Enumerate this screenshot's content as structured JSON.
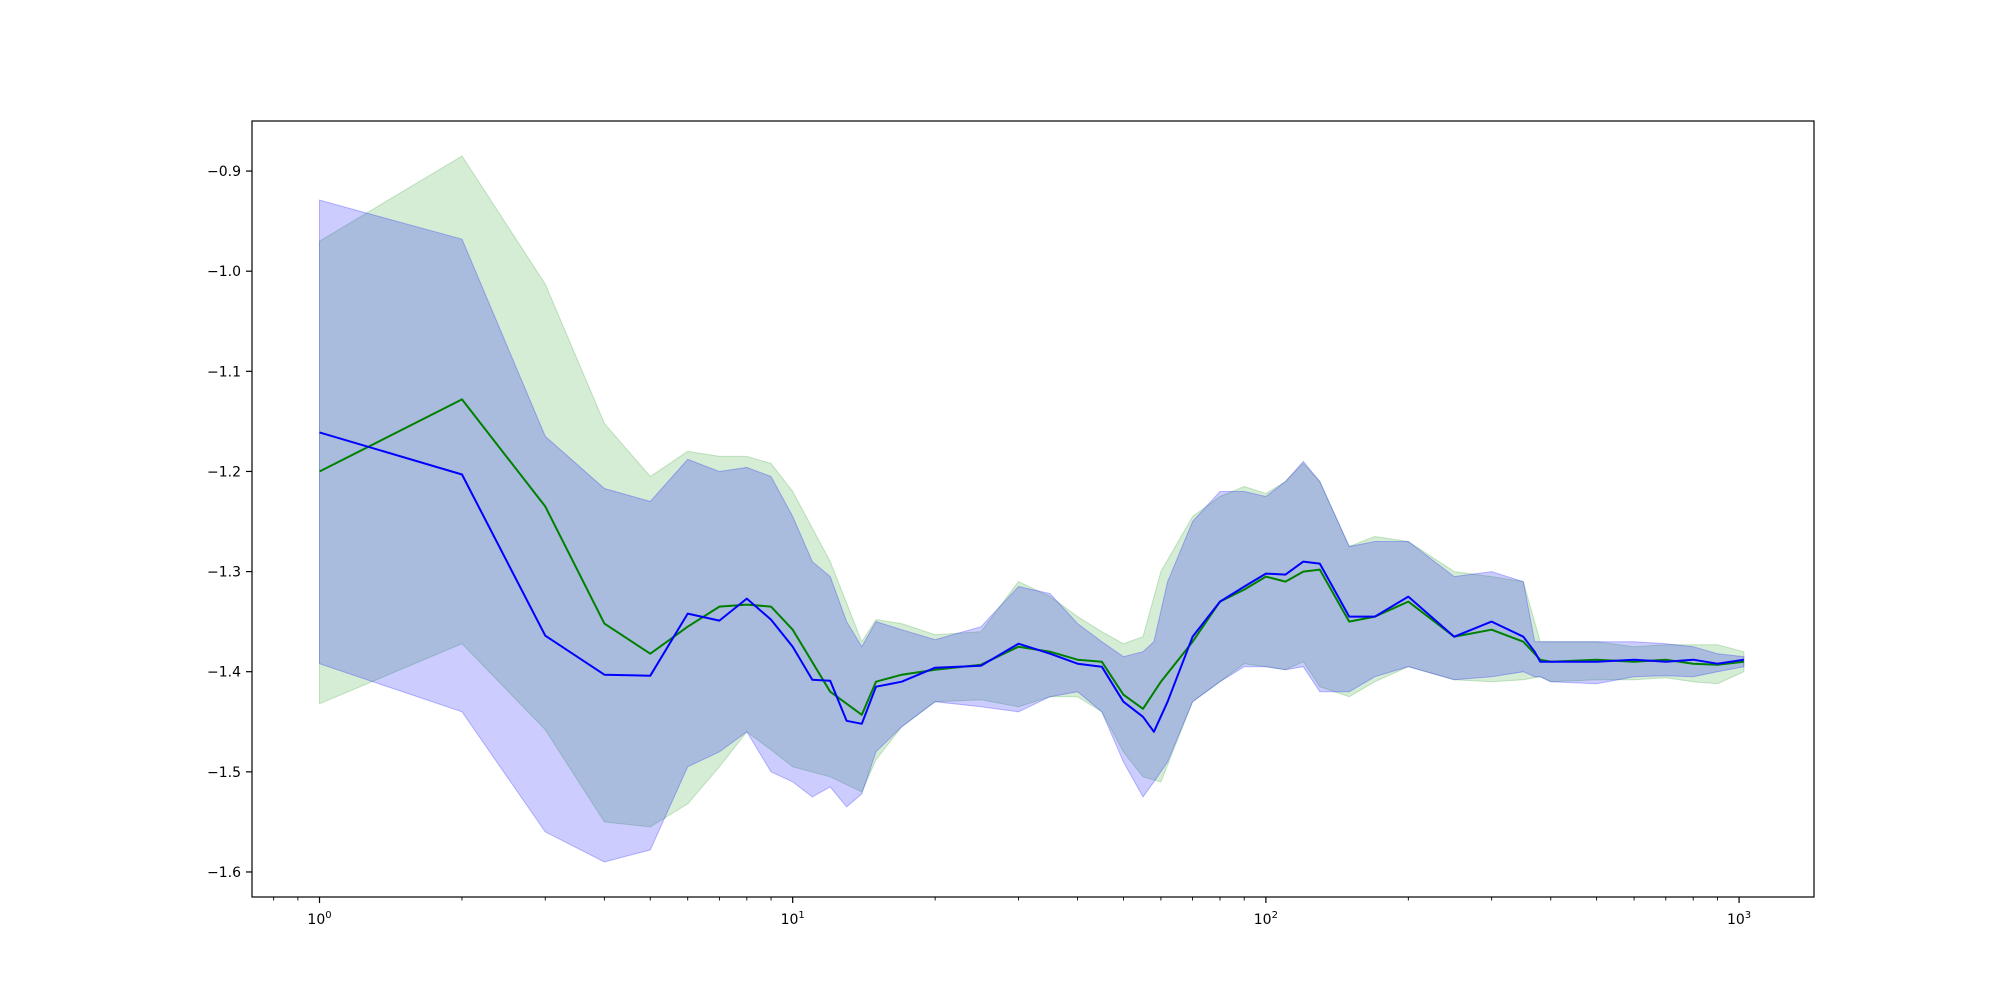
{
  "chart_data": {
    "type": "line",
    "title": "",
    "xlabel": "",
    "ylabel": "",
    "xscale": "log",
    "xlim": [
      0.72,
      1440
    ],
    "ylim": [
      -1.625,
      -0.85
    ],
    "grid": false,
    "legend": "none",
    "x_ticks": [
      {
        "value": 1,
        "base": "10",
        "exp": "0"
      },
      {
        "value": 10,
        "base": "10",
        "exp": "1"
      },
      {
        "value": 100,
        "base": "10",
        "exp": "2"
      },
      {
        "value": 1000,
        "base": "10",
        "exp": "3"
      }
    ],
    "y_ticks": [
      {
        "value": -0.9,
        "label": "−0.9"
      },
      {
        "value": -1.0,
        "label": "−1.0"
      },
      {
        "value": -1.1,
        "label": "−1.1"
      },
      {
        "value": -1.2,
        "label": "−1.2"
      },
      {
        "value": -1.3,
        "label": "−1.3"
      },
      {
        "value": -1.4,
        "label": "−1.4"
      },
      {
        "value": -1.5,
        "label": "−1.5"
      },
      {
        "value": -1.6,
        "label": "−1.6"
      }
    ],
    "series": [
      {
        "color": "#008000",
        "band_color": "#2ca02c",
        "x": [
          1,
          2,
          3,
          4,
          5,
          6,
          7,
          8,
          9,
          10,
          12,
          14,
          15,
          17,
          20,
          25,
          30,
          35,
          40,
          45,
          50,
          55,
          60,
          70,
          80,
          90,
          100,
          110,
          120,
          130,
          150,
          170,
          200,
          250,
          300,
          350,
          380,
          400,
          500,
          600,
          700,
          800,
          900,
          1024
        ],
        "mean": [
          -1.2,
          -1.128,
          -1.235,
          -1.352,
          -1.382,
          -1.355,
          -1.335,
          -1.333,
          -1.335,
          -1.358,
          -1.42,
          -1.443,
          -1.41,
          -1.403,
          -1.398,
          -1.393,
          -1.375,
          -1.38,
          -1.388,
          -1.39,
          -1.423,
          -1.437,
          -1.41,
          -1.37,
          -1.33,
          -1.318,
          -1.305,
          -1.31,
          -1.3,
          -1.298,
          -1.35,
          -1.345,
          -1.33,
          -1.365,
          -1.358,
          -1.37,
          -1.388,
          -1.39,
          -1.388,
          -1.39,
          -1.388,
          -1.392,
          -1.393,
          -1.39
        ],
        "upper": [
          -0.97,
          -0.885,
          -1.013,
          -1.152,
          -1.205,
          -1.18,
          -1.185,
          -1.185,
          -1.192,
          -1.22,
          -1.29,
          -1.37,
          -1.348,
          -1.352,
          -1.363,
          -1.36,
          -1.31,
          -1.325,
          -1.345,
          -1.36,
          -1.372,
          -1.365,
          -1.3,
          -1.245,
          -1.225,
          -1.215,
          -1.222,
          -1.21,
          -1.192,
          -1.21,
          -1.275,
          -1.265,
          -1.27,
          -1.3,
          -1.305,
          -1.31,
          -1.37,
          -1.37,
          -1.37,
          -1.375,
          -1.373,
          -1.373,
          -1.373,
          -1.38
        ],
        "lower": [
          -1.432,
          -1.372,
          -1.458,
          -1.55,
          -1.555,
          -1.532,
          -1.495,
          -1.46,
          -1.478,
          -1.495,
          -1.505,
          -1.52,
          -1.488,
          -1.455,
          -1.43,
          -1.428,
          -1.435,
          -1.425,
          -1.425,
          -1.44,
          -1.48,
          -1.505,
          -1.51,
          -1.43,
          -1.41,
          -1.392,
          -1.395,
          -1.398,
          -1.39,
          -1.415,
          -1.425,
          -1.41,
          -1.395,
          -1.408,
          -1.41,
          -1.408,
          -1.405,
          -1.41,
          -1.408,
          -1.408,
          -1.406,
          -1.41,
          -1.412,
          -1.4
        ]
      },
      {
        "color": "#0000ff",
        "band_color": "#0000ff",
        "x": [
          1,
          2,
          3,
          4,
          5,
          6,
          7,
          8,
          9,
          10,
          11,
          12,
          13,
          14,
          15,
          17,
          20,
          25,
          30,
          35,
          40,
          45,
          50,
          55,
          58,
          62,
          70,
          80,
          90,
          100,
          110,
          120,
          130,
          150,
          170,
          200,
          250,
          300,
          350,
          370,
          380,
          400,
          500,
          600,
          700,
          800,
          900,
          1024
        ],
        "mean": [
          -1.161,
          -1.203,
          -1.364,
          -1.403,
          -1.404,
          -1.342,
          -1.349,
          -1.327,
          -1.348,
          -1.375,
          -1.408,
          -1.409,
          -1.449,
          -1.452,
          -1.415,
          -1.41,
          -1.396,
          -1.394,
          -1.372,
          -1.382,
          -1.392,
          -1.395,
          -1.43,
          -1.445,
          -1.46,
          -1.43,
          -1.365,
          -1.33,
          -1.315,
          -1.302,
          -1.303,
          -1.29,
          -1.292,
          -1.345,
          -1.345,
          -1.325,
          -1.365,
          -1.35,
          -1.365,
          -1.38,
          -1.39,
          -1.39,
          -1.39,
          -1.388,
          -1.39,
          -1.388,
          -1.392,
          -1.388
        ],
        "upper": [
          -0.929,
          -0.968,
          -1.165,
          -1.217,
          -1.23,
          -1.188,
          -1.2,
          -1.196,
          -1.205,
          -1.245,
          -1.29,
          -1.305,
          -1.35,
          -1.375,
          -1.35,
          -1.358,
          -1.368,
          -1.355,
          -1.315,
          -1.322,
          -1.352,
          -1.37,
          -1.385,
          -1.38,
          -1.37,
          -1.31,
          -1.25,
          -1.22,
          -1.22,
          -1.225,
          -1.21,
          -1.19,
          -1.21,
          -1.275,
          -1.27,
          -1.27,
          -1.305,
          -1.3,
          -1.31,
          -1.37,
          -1.37,
          -1.37,
          -1.37,
          -1.37,
          -1.372,
          -1.375,
          -1.382,
          -1.385
        ],
        "lower": [
          -1.392,
          -1.44,
          -1.56,
          -1.59,
          -1.578,
          -1.495,
          -1.48,
          -1.46,
          -1.5,
          -1.51,
          -1.525,
          -1.515,
          -1.535,
          -1.522,
          -1.48,
          -1.455,
          -1.43,
          -1.435,
          -1.44,
          -1.425,
          -1.42,
          -1.44,
          -1.49,
          -1.525,
          -1.51,
          -1.49,
          -1.43,
          -1.41,
          -1.395,
          -1.395,
          -1.398,
          -1.395,
          -1.42,
          -1.42,
          -1.405,
          -1.395,
          -1.408,
          -1.405,
          -1.4,
          -1.405,
          -1.405,
          -1.41,
          -1.412,
          -1.405,
          -1.404,
          -1.405,
          -1.4,
          -1.395
        ]
      }
    ]
  }
}
